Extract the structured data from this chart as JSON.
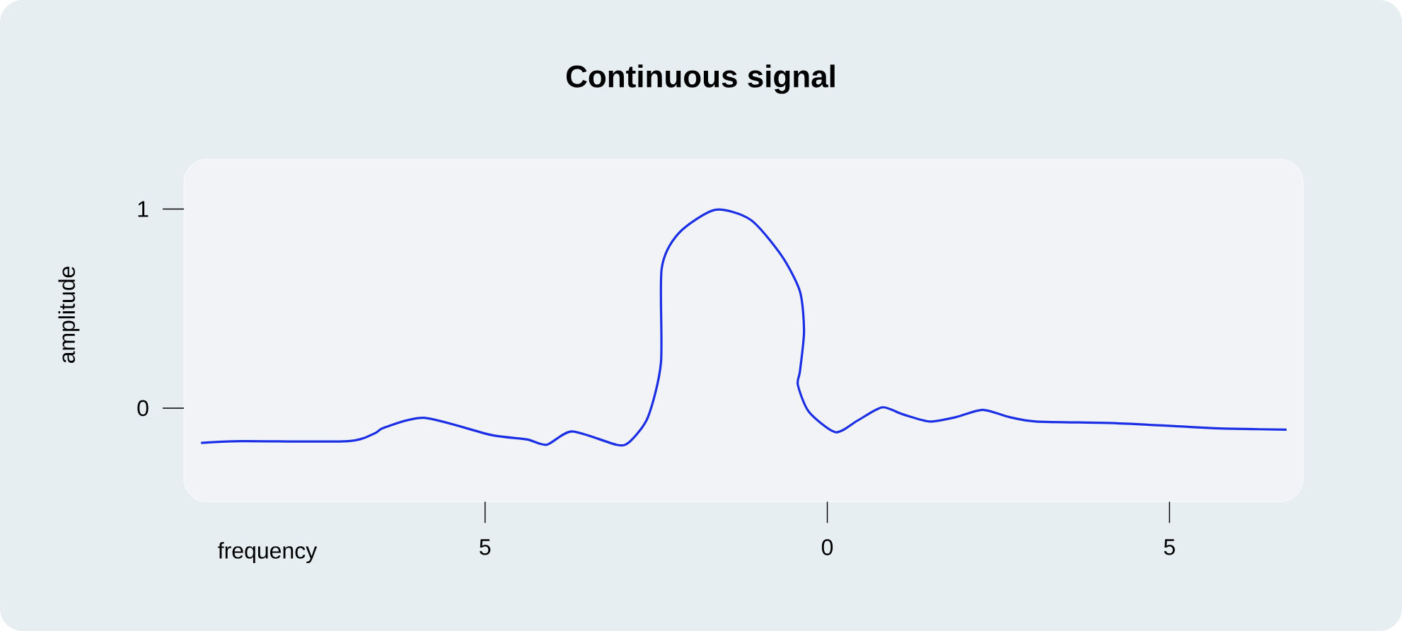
{
  "chart_data": {
    "type": "line",
    "title": "Continuous signal",
    "xlabel": "frequency",
    "ylabel": "amplitude",
    "x": [
      -9.15,
      -8.56,
      -7.0,
      -6.61,
      -6.48,
      -5.89,
      -4.91,
      -4.39,
      -4.1,
      -3.73,
      -3.08,
      -2.89,
      -2.62,
      -2.43,
      -2.42,
      -2.17,
      -1.64,
      -1.12,
      -0.67,
      -0.4,
      -0.34,
      -0.4,
      -0.43,
      -0.27,
      0.12,
      0.44,
      0.8,
      1.1,
      1.49,
      1.88,
      2.27,
      2.66,
      3.05,
      4.23,
      5.27,
      5.8,
      6.71
    ],
    "series": [
      {
        "color": "#1a2ee6",
        "values": [
          -0.175,
          -0.166,
          -0.166,
          -0.126,
          -0.099,
          -0.049,
          -0.135,
          -0.157,
          -0.184,
          -0.117,
          -0.184,
          -0.17,
          -0.045,
          0.229,
          0.7,
          0.879,
          0.996,
          0.946,
          0.767,
          0.587,
          0.386,
          0.184,
          0.117,
          -0.018,
          -0.121,
          -0.063,
          0.004,
          -0.031,
          -0.067,
          -0.045,
          -0.009,
          -0.045,
          -0.067,
          -0.076,
          -0.094,
          -0.103,
          -0.108
        ]
      }
    ],
    "xlim": [
      -9.4,
      6.95
    ],
    "ylim": [
      -0.47,
      1.25
    ],
    "xticks": [
      {
        "value": -5,
        "label": "5"
      },
      0,
      {
        "value": 5,
        "label": "5"
      }
    ],
    "yticks": [
      0,
      1
    ],
    "marker": "none",
    "line_style": "solid",
    "grid": false
  }
}
